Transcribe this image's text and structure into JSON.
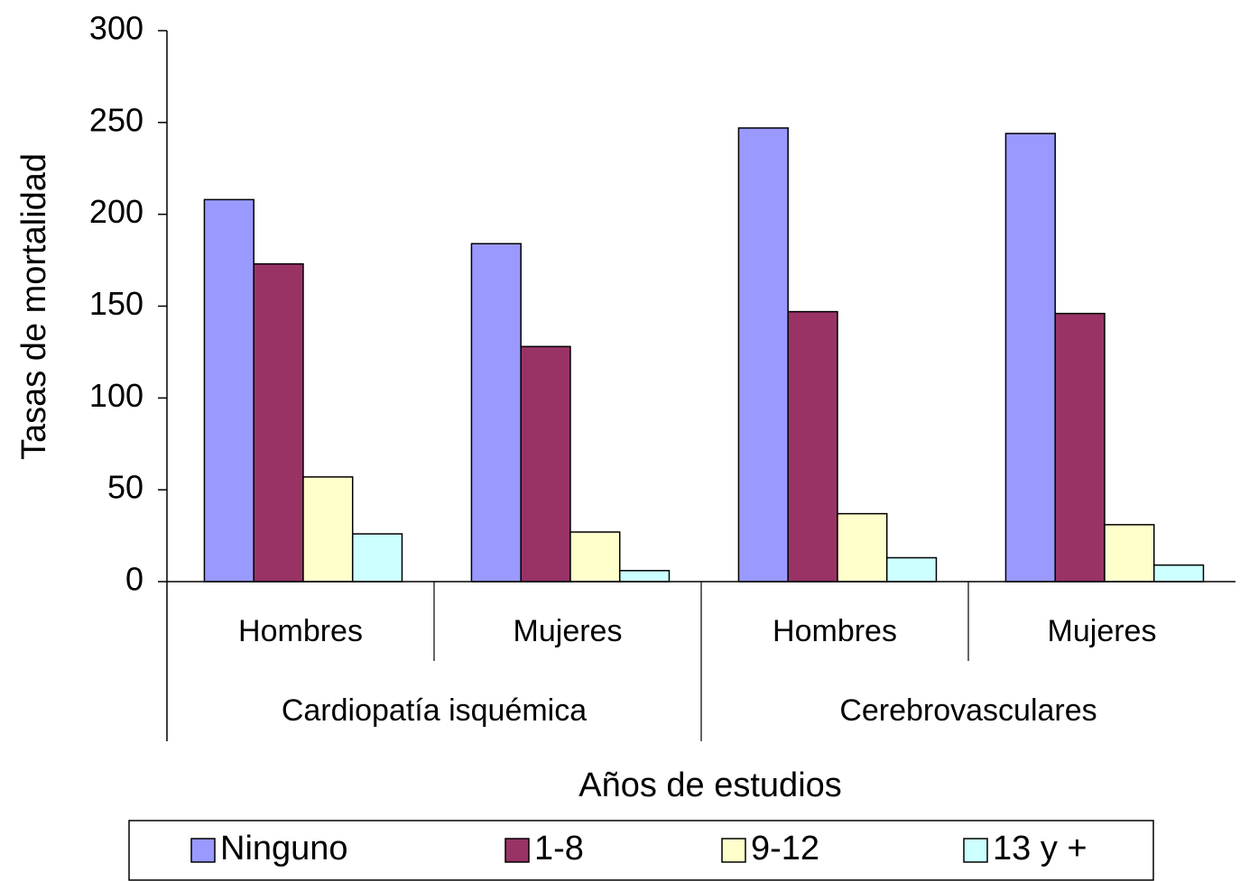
{
  "chart_data": {
    "type": "bar",
    "y_label": "Tasas de mortalidad",
    "x_label": "Años de estudios",
    "groups": [
      {
        "name": "Cardiopatía isquémica",
        "categories": [
          "Hombres",
          "Mujeres"
        ]
      },
      {
        "name": "Cerebrovasculares",
        "categories": [
          "Hombres",
          "Mujeres"
        ]
      }
    ],
    "series": [
      {
        "name": "Ninguno",
        "color": "#9999ff",
        "values": [
          208,
          184,
          247,
          244
        ]
      },
      {
        "name": "1-8",
        "color": "#993366",
        "values": [
          173,
          128,
          147,
          146
        ]
      },
      {
        "name": "9-12",
        "color": "#ffffcc",
        "values": [
          57,
          27,
          37,
          31
        ]
      },
      {
        "name": "13 y +",
        "color": "#ccffff",
        "values": [
          26,
          6,
          13,
          9
        ]
      }
    ],
    "ylim": [
      0,
      300
    ],
    "yticks": [
      0,
      50,
      100,
      150,
      200,
      250,
      300
    ],
    "legend": "bottom"
  }
}
